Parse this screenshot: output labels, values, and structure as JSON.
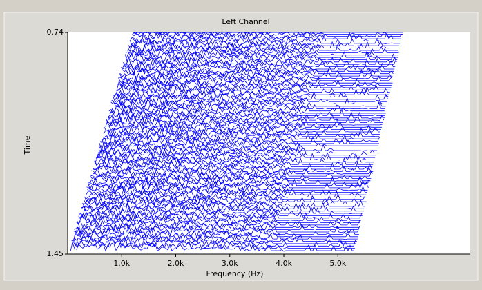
{
  "chart_data": {
    "type": "waterfall",
    "title": "Left Channel",
    "x_label": "Frequency (Hz)",
    "y_label": "Time",
    "xlim": [
      0,
      7450
    ],
    "xticks": [
      {
        "value": 1000,
        "label": "1.0k"
      },
      {
        "value": 2000,
        "label": "2.0k"
      },
      {
        "value": 3000,
        "label": "3.0k"
      },
      {
        "value": 4000,
        "label": "4.0k"
      },
      {
        "value": 5000,
        "label": "5.0k"
      }
    ],
    "ylim": [
      0.74,
      1.45
    ],
    "yticks": [
      0.74,
      1.45
    ],
    "y_inverted": true,
    "color": "#0000ff"
  }
}
